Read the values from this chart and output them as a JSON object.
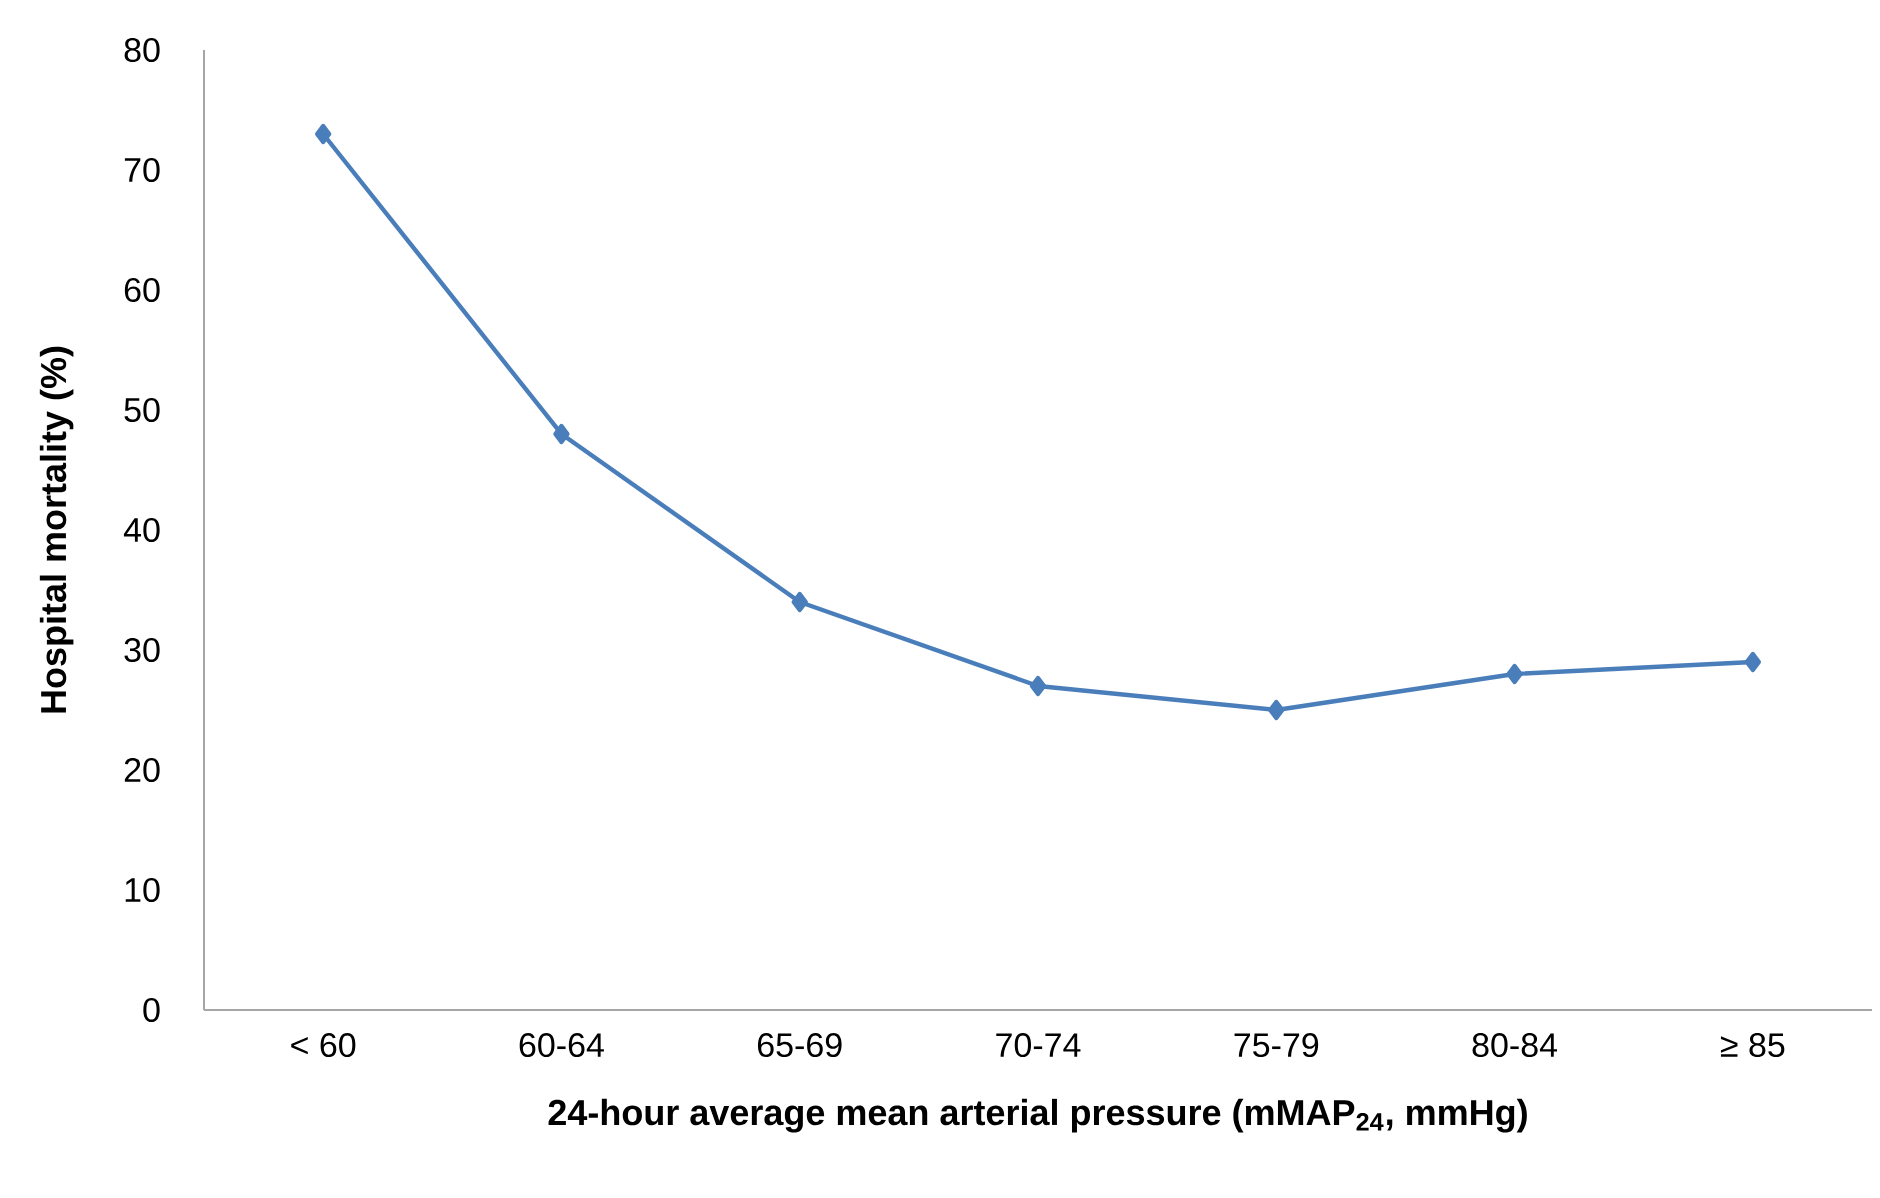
{
  "chart_data": {
    "type": "line",
    "xlabel": "24-hour average mean arterial pressure (mMAP$_{24}$, mmHg)",
    "ylabel": "Hospital mortality (%)",
    "categories": [
      "< 60",
      "60-64",
      "65-69",
      "70-74",
      "75-79",
      "80-84",
      "≥ 85"
    ],
    "series": [
      {
        "color": "#4a7ebb",
        "values": [
          73,
          48,
          34,
          27,
          25,
          28,
          29
        ]
      }
    ],
    "ylim": [
      0,
      80
    ],
    "yticks": [
      0,
      10,
      20,
      30,
      40,
      50,
      60,
      70,
      80
    ],
    "grid": false,
    "marker": "diamond",
    "line_style": "solid"
  }
}
